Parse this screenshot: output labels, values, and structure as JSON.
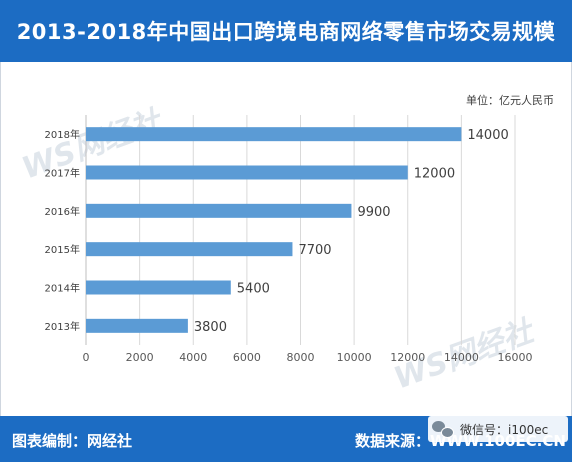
{
  "title": "2013-2018年中国出口跨境电商网络零售市场交易规模",
  "unit": "单位：亿元人民币",
  "footer": {
    "left": "图表编制：网经社",
    "right": "数据来源：WWW.100EC.CN"
  },
  "wechat": {
    "text": "微信号：i100ec"
  },
  "watermark": {
    "text": "WS网经社"
  },
  "colors": {
    "bar": "#5b9bd5",
    "header": "#1c6cc3",
    "grid": "#d9d9d9"
  },
  "chart_data": {
    "type": "bar",
    "orientation": "horizontal",
    "title": "2013-2018年中国出口跨境电商网络零售市场交易规模",
    "categories": [
      "2018年",
      "2017年",
      "2016年",
      "2015年",
      "2014年",
      "2013年"
    ],
    "values": [
      14000,
      12000,
      9900,
      7700,
      5400,
      3800
    ],
    "xlim": [
      0,
      16000
    ],
    "xticks": [
      0,
      2000,
      4000,
      6000,
      8000,
      10000,
      12000,
      14000,
      16000
    ],
    "grid": true,
    "data_labels": true,
    "unit": "单位：亿元人民币"
  }
}
